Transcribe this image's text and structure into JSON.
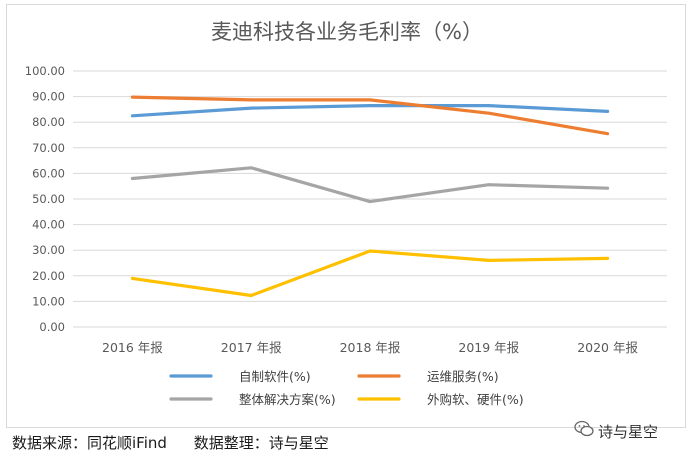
{
  "chart_data": {
    "type": "line",
    "title": "麦迪科技各业务毛利率（%）",
    "categories": [
      "2016 年报",
      "2017 年报",
      "2018 年报",
      "2019 年报",
      "2020 年报"
    ],
    "ylim": [
      0,
      100
    ],
    "yticks": [
      "0.00",
      "10.00",
      "20.00",
      "30.00",
      "40.00",
      "50.00",
      "60.00",
      "70.00",
      "80.00",
      "90.00",
      "100.00"
    ],
    "grid": true,
    "legend": "bottom",
    "series": [
      {
        "name": "自制软件(%)",
        "color": "#5b9bd5",
        "values": [
          82.5,
          85.5,
          86.5,
          86.5,
          84.2
        ]
      },
      {
        "name": "运维服务(%)",
        "color": "#ed7d31",
        "values": [
          89.8,
          88.7,
          88.7,
          83.5,
          75.5
        ]
      },
      {
        "name": "整体解决方案(%)",
        "color": "#a5a5a5",
        "values": [
          58.0,
          62.2,
          49.0,
          55.6,
          54.2
        ]
      },
      {
        "name": "外购软、硬件(%)",
        "color": "#ffc000",
        "values": [
          19.0,
          12.3,
          29.7,
          26.0,
          26.8
        ]
      }
    ]
  },
  "footer": {
    "source": "数据来源：同花顺iFind",
    "organizer": "数据整理：诗与星空"
  },
  "watermark": {
    "text": "诗与星空",
    "icon": "wechat-icon"
  }
}
